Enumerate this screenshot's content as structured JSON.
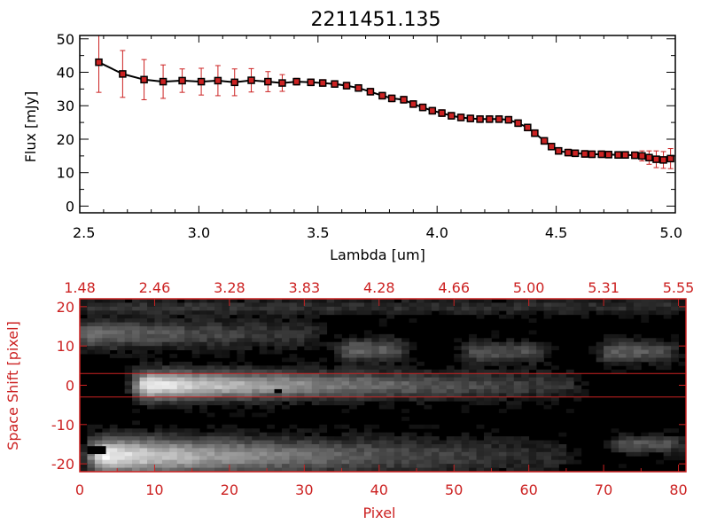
{
  "title": "2211451.135",
  "colors": {
    "axis_top": "#000000",
    "axis_bottom": "#cc2222",
    "errorbar": "#cc2222",
    "marker": "#cc2222",
    "line": "#000000",
    "slit_lines": "#cc2222"
  },
  "chart_data": [
    {
      "type": "line",
      "title": "2211451.135",
      "xlabel": "Lambda [um]",
      "ylabel": "Flux [mJy]",
      "xlim": [
        2.5,
        5.0
      ],
      "ylim": [
        -2,
        51
      ],
      "x_ticks": [
        "2.5",
        "3.0",
        "3.5",
        "4.0",
        "4.5",
        "5.0"
      ],
      "y_ticks": [
        "0",
        "10",
        "20",
        "30",
        "40",
        "50"
      ],
      "x_tick_values": [
        2.5,
        3.0,
        3.5,
        4.0,
        4.5,
        5.0
      ],
      "y_tick_values": [
        0,
        10,
        20,
        30,
        40,
        50
      ],
      "grid": false,
      "series": [
        {
          "x": [
            2.58,
            2.68,
            2.77,
            2.85,
            2.93,
            3.01,
            3.08,
            3.15,
            3.22,
            3.29,
            3.35,
            3.41,
            3.47,
            3.52,
            3.57,
            3.62,
            3.67,
            3.72,
            3.77,
            3.81,
            3.86,
            3.9,
            3.94,
            3.98,
            4.02,
            4.06,
            4.1,
            4.14,
            4.18,
            4.22,
            4.26,
            4.3,
            4.34,
            4.38,
            4.41,
            4.45,
            4.48,
            4.51,
            4.55,
            4.58,
            4.62,
            4.65,
            4.69,
            4.72,
            4.76,
            4.79,
            4.83,
            4.86,
            4.89,
            4.92,
            4.95,
            4.98
          ],
          "values": [
            43.0,
            39.5,
            37.8,
            37.2,
            37.5,
            37.2,
            37.5,
            37.0,
            37.6,
            37.2,
            36.8,
            37.2,
            37.0,
            36.8,
            36.5,
            36.0,
            35.3,
            34.2,
            33.0,
            32.2,
            31.8,
            30.5,
            29.5,
            28.5,
            27.8,
            27.0,
            26.5,
            26.2,
            26.0,
            26.0,
            26.0,
            25.8,
            24.8,
            23.5,
            21.8,
            19.5,
            17.8,
            16.5,
            16.0,
            15.8,
            15.6,
            15.5,
            15.5,
            15.4,
            15.3,
            15.3,
            15.2,
            15.0,
            14.5,
            14.0,
            13.8,
            14.2
          ],
          "errors": [
            9.0,
            7.0,
            6.0,
            5.0,
            3.5,
            4.0,
            4.5,
            4.0,
            3.5,
            3.0,
            2.5,
            1.0,
            1.0,
            1.0,
            1.0,
            1.0,
            1.0,
            1.0,
            1.0,
            1.0,
            1.0,
            1.0,
            1.0,
            1.0,
            1.0,
            1.0,
            1.0,
            1.0,
            1.0,
            1.0,
            1.0,
            1.0,
            1.0,
            1.0,
            1.0,
            1.0,
            1.0,
            1.0,
            1.0,
            1.0,
            1.0,
            1.0,
            1.0,
            1.0,
            1.0,
            1.0,
            1.0,
            1.5,
            2.0,
            2.5,
            2.5,
            3.0
          ]
        }
      ]
    },
    {
      "type": "heatmap",
      "xlabel": "Pixel",
      "ylabel": "Space Shift [pixel]",
      "xlim": [
        0,
        81
      ],
      "ylim": [
        -22,
        22
      ],
      "x_ticks": [
        "0",
        "10",
        "20",
        "30",
        "40",
        "50",
        "60",
        "70",
        "80"
      ],
      "x_tick_values": [
        0,
        10,
        20,
        30,
        40,
        50,
        60,
        70,
        80
      ],
      "y_ticks": [
        "-20",
        "-10",
        "0",
        "10",
        "20"
      ],
      "y_tick_values": [
        -20,
        -10,
        0,
        10,
        20
      ],
      "top_ticks": [
        "1.48",
        "2.46",
        "3.28",
        "3.83",
        "4.28",
        "4.66",
        "5.00",
        "5.31",
        "5.55"
      ],
      "top_tick_positions": [
        0,
        10,
        20,
        30,
        40,
        50,
        60,
        70,
        80
      ],
      "hlines": [
        3,
        -3
      ],
      "nx": 81,
      "ny": 44,
      "features": [
        {
          "x0": 8,
          "x1": 66,
          "y0": 0,
          "width": 2.5,
          "peak": 1.0,
          "decay": 0.028
        },
        {
          "x0": 2,
          "x1": 65,
          "y0": -18,
          "width": 3.2,
          "peak": 1.0,
          "decay": 0.03
        },
        {
          "x0": 0,
          "x1": 32,
          "y0": 13,
          "width": 2.5,
          "peak": 0.45,
          "decay": 0.03
        },
        {
          "x0": 35,
          "x1": 43,
          "y0": 9,
          "width": 2.0,
          "peak": 0.4,
          "decay": 0.02
        },
        {
          "x0": 52,
          "x1": 62,
          "y0": 8.5,
          "width": 1.8,
          "peak": 0.35,
          "decay": 0.02
        },
        {
          "x0": 70,
          "x1": 79,
          "y0": 8.5,
          "width": 2.0,
          "peak": 0.38,
          "decay": 0.02
        },
        {
          "x0": 72,
          "x1": 80,
          "y0": -15,
          "width": 1.5,
          "peak": 0.35,
          "decay": 0.01
        },
        {
          "x0": 0,
          "x1": 80,
          "y0": 20,
          "width": 1.5,
          "peak": 0.18,
          "decay": 0.0
        }
      ]
    }
  ]
}
